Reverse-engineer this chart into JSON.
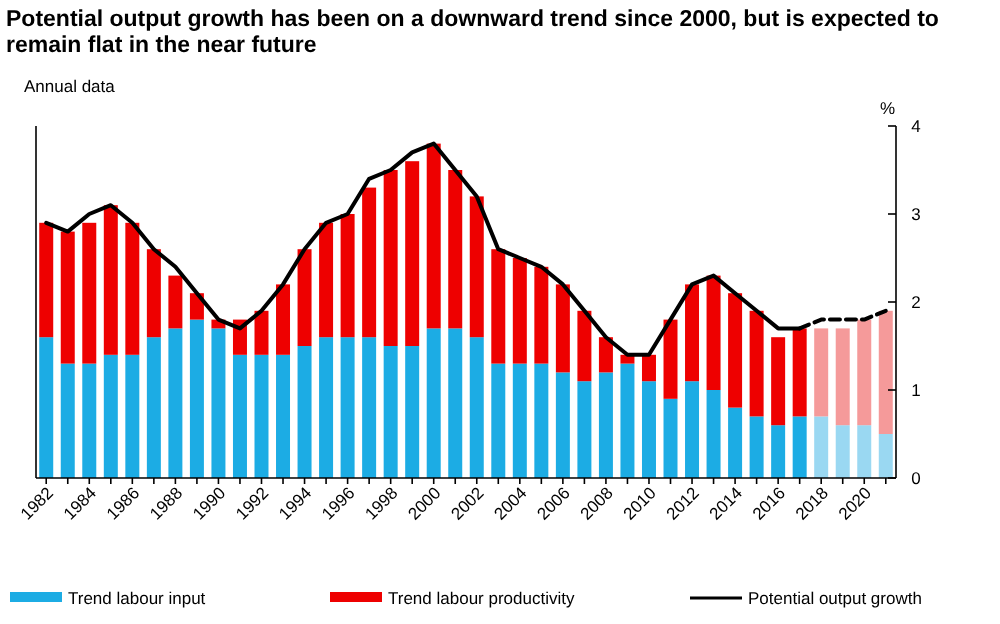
{
  "chart_data": {
    "type": "bar",
    "title": "Potential output growth has been on a downward trend since 2000, but is expected to remain flat in the near future",
    "subtitle": "Annual data",
    "ylabel": "%",
    "categories": [
      "1982",
      null,
      "1984",
      null,
      "1986",
      null,
      "1988",
      null,
      "1990",
      null,
      "1992",
      null,
      "1994",
      null,
      "1996",
      null,
      "1998",
      null,
      "2000",
      null,
      "2002",
      null,
      "2004",
      null,
      "2006",
      null,
      "2008",
      null,
      "2010",
      null,
      "2012",
      null,
      "2014",
      null,
      "2016",
      null,
      "2018",
      null,
      "2020",
      null
    ],
    "stacked": true,
    "ylim": [
      0,
      4
    ],
    "yticks": [
      0,
      1,
      2,
      3,
      4
    ],
    "grid": false,
    "legend": "bottom",
    "series": [
      {
        "name": "Trend labour input",
        "color": "#1cace4",
        "colors": [
          "#1cace4",
          "#1cace4",
          "#1cace4",
          "#1cace4",
          "#1cace4",
          "#1cace4",
          "#1cace4",
          "#1cace4",
          "#1cace4",
          "#1cace4",
          "#1cace4",
          "#1cace4",
          "#1cace4",
          "#1cace4",
          "#1cace4",
          "#1cace4",
          "#1cace4",
          "#1cace4",
          "#1cace4",
          "#1cace4",
          "#1cace4",
          "#1cace4",
          "#1cace4",
          "#1cace4",
          "#1cace4",
          "#1cace4",
          "#1cace4",
          "#1cace4",
          "#1cace4",
          "#1cace4",
          "#1cace4",
          "#1cace4",
          "#1cace4",
          "#1cace4",
          "#1cace4",
          "#1cace4",
          "#9ad8f2",
          "#9ad8f2",
          "#9ad8f2",
          "#9ad8f2"
        ],
        "values": [
          1.6,
          1.3,
          1.3,
          1.4,
          1.4,
          1.6,
          1.7,
          1.8,
          1.7,
          1.4,
          1.4,
          1.4,
          1.5,
          1.6,
          1.6,
          1.6,
          1.5,
          1.5,
          1.7,
          1.7,
          1.6,
          1.3,
          1.3,
          1.3,
          1.2,
          1.1,
          1.2,
          1.3,
          1.1,
          0.9,
          1.1,
          1.0,
          0.8,
          0.7,
          0.6,
          0.7,
          0.7,
          0.6,
          0.6,
          0.5
        ]
      },
      {
        "name": "Trend labour productivity",
        "color": "#ee0000",
        "colors": [
          "#ee0000",
          "#ee0000",
          "#ee0000",
          "#ee0000",
          "#ee0000",
          "#ee0000",
          "#ee0000",
          "#ee0000",
          "#ee0000",
          "#ee0000",
          "#ee0000",
          "#ee0000",
          "#ee0000",
          "#ee0000",
          "#ee0000",
          "#ee0000",
          "#ee0000",
          "#ee0000",
          "#ee0000",
          "#ee0000",
          "#ee0000",
          "#ee0000",
          "#ee0000",
          "#ee0000",
          "#ee0000",
          "#ee0000",
          "#ee0000",
          "#ee0000",
          "#ee0000",
          "#ee0000",
          "#ee0000",
          "#ee0000",
          "#ee0000",
          "#ee0000",
          "#ee0000",
          "#ee0000",
          "#f59a9a",
          "#f59a9a",
          "#f59a9a",
          "#f59a9a"
        ],
        "values": [
          1.3,
          1.5,
          1.6,
          1.7,
          1.5,
          1.0,
          0.6,
          0.3,
          0.1,
          0.4,
          0.5,
          0.8,
          1.1,
          1.3,
          1.4,
          1.7,
          2.0,
          2.1,
          2.1,
          1.8,
          1.6,
          1.3,
          1.2,
          1.1,
          1.0,
          0.8,
          0.4,
          0.1,
          0.3,
          0.9,
          1.1,
          1.3,
          1.3,
          1.2,
          1.0,
          1.0,
          1.0,
          1.1,
          1.2,
          1.4
        ]
      },
      {
        "name": "Potential output growth",
        "type": "line",
        "color": "#000000",
        "line_style": "solid",
        "values": [
          2.9,
          2.8,
          3.0,
          3.1,
          2.9,
          2.6,
          2.4,
          2.1,
          1.8,
          1.7,
          1.9,
          2.2,
          2.6,
          2.9,
          3.0,
          3.4,
          3.5,
          3.7,
          3.8,
          3.5,
          3.2,
          2.6,
          2.5,
          2.4,
          2.2,
          1.9,
          1.6,
          1.4,
          1.4,
          1.8,
          2.2,
          2.3,
          2.1,
          1.9,
          1.7,
          1.7,
          null,
          null,
          null,
          null
        ]
      },
      {
        "type": "line",
        "color": "#000000",
        "line_style": "dashed",
        "values": [
          null,
          null,
          null,
          null,
          null,
          null,
          null,
          null,
          null,
          null,
          null,
          null,
          null,
          null,
          null,
          null,
          null,
          null,
          null,
          null,
          null,
          null,
          null,
          null,
          null,
          null,
          null,
          null,
          null,
          null,
          null,
          null,
          null,
          null,
          null,
          1.7,
          1.8,
          1.8,
          1.8,
          1.9
        ]
      }
    ]
  }
}
